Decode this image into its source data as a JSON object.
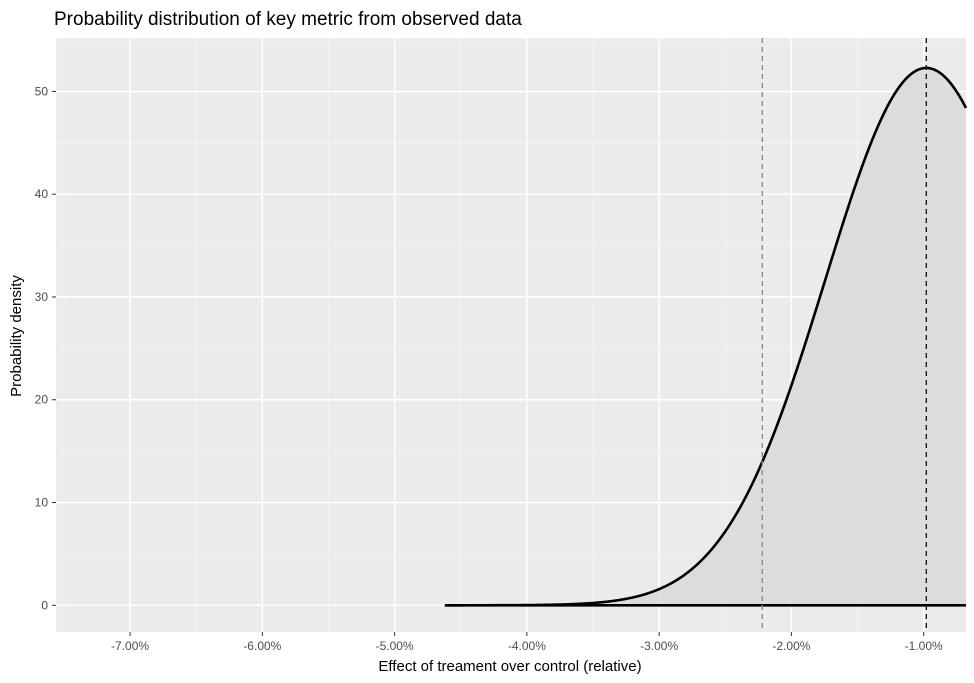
{
  "chart_data": {
    "type": "area",
    "title": "Probability distribution of key metric from observed data",
    "xlabel": "Effect of treament over control (relative)",
    "ylabel": "Probability density",
    "xlim": [
      -0.0756,
      -0.0068
    ],
    "ylim": [
      -2.6,
      55.2
    ],
    "x_ticks": [
      -0.07,
      -0.06,
      -0.05,
      -0.04,
      -0.03,
      -0.02,
      -0.01
    ],
    "x_tick_labels": [
      "-7.00%",
      "-6.00%",
      "-5.00%",
      "-4.00%",
      "-3.00%",
      "-2.00%",
      "-1.00%"
    ],
    "y_ticks": [
      0,
      10,
      20,
      30,
      40,
      50
    ],
    "y_tick_labels": [
      "0",
      "10",
      "20",
      "30",
      "40",
      "50"
    ],
    "grid": true,
    "legend": "none",
    "distribution": {
      "kind": "normal",
      "mean": -0.0098,
      "sd": 0.00763,
      "scale": 1.0,
      "x_start": -0.0462,
      "x_end": -0.0068
    },
    "reference_lines": [
      {
        "x": -0.0222,
        "style": "dashed",
        "color": "#8c8c8c"
      },
      {
        "x": -0.0098,
        "style": "dashed",
        "color": "#1a1a1a"
      }
    ],
    "colors": {
      "panel_background": "#ebebeb",
      "grid_major": "#ffffff",
      "curve": "#000000",
      "fill": "#d9d9d9"
    }
  }
}
